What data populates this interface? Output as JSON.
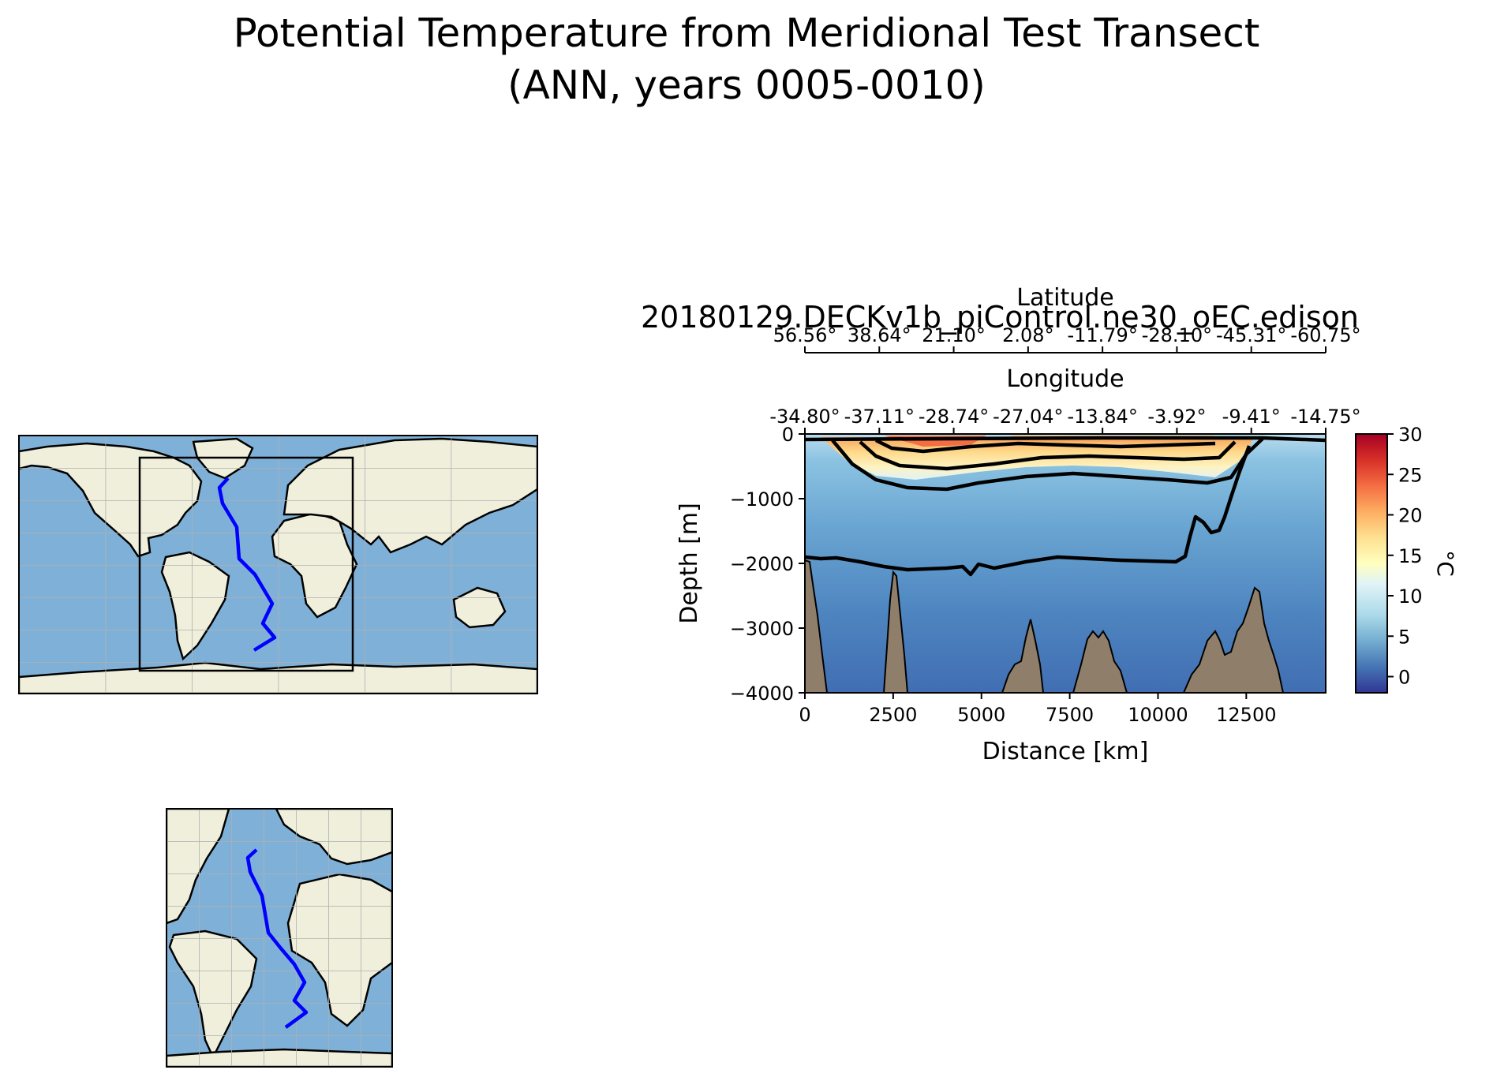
{
  "figure": {
    "title_line1": "Potential Temperature from Meridional Test Transect",
    "title_line2": "(ANN, years 0005-0010)",
    "run_name": "20180129.DECKv1b_piControl.ne30_oEC.edison"
  },
  "colors": {
    "ocean": "#7fb1d8",
    "land": "#efefdc",
    "transect": "#0000ff",
    "bathymetry": "#8f7f6a",
    "gridline": "#b0b0b0"
  },
  "maps": {
    "global": {
      "grid": true,
      "transect_drawn": true,
      "region_box": true
    },
    "regional": {
      "grid": true,
      "transect_drawn": true
    }
  },
  "chart_data": {
    "type": "heatmap",
    "colormap": "RdYlBu_r",
    "xlabel": "Distance [km]",
    "ylabel": "Depth [m]",
    "xlim": [
      0,
      14750
    ],
    "ylim": [
      -4000,
      0
    ],
    "x_ticks": [
      "0",
      "2500",
      "5000",
      "7500",
      "10000",
      "12500"
    ],
    "y_ticks": [
      "0",
      "−1000",
      "−2000",
      "−3000",
      "−4000"
    ],
    "top_axis_longitude": {
      "label": "Longitude",
      "ticks": [
        "-34.80°",
        "-37.11°",
        "-28.74°",
        "-27.04°",
        "-13.84°",
        "-3.92°",
        "-9.41°",
        "-14.75°"
      ]
    },
    "top_axis_latitude": {
      "label": "Latitude",
      "ticks": [
        "56.56°",
        "38.64°",
        "21.10°",
        "2.08°",
        "-11.79°",
        "-28.10°",
        "-45.31°",
        "-60.75°"
      ]
    },
    "colorbar": {
      "label": "°C",
      "min": -2,
      "max": 30,
      "ticks": [
        "30",
        "25",
        "20",
        "15",
        "10",
        "5",
        "0"
      ],
      "tick_values": [
        30,
        25,
        20,
        15,
        10,
        5,
        0
      ]
    },
    "contour_levels": [
      2,
      4,
      8,
      12,
      16,
      20
    ]
  }
}
